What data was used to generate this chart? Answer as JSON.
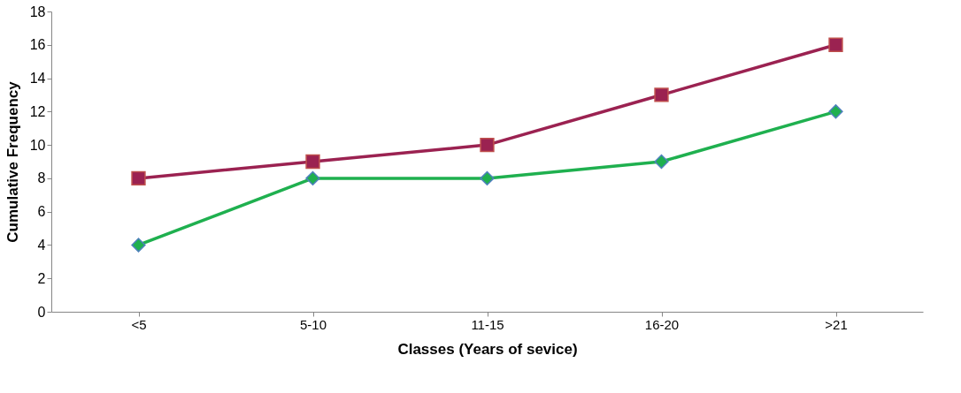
{
  "chart_data": {
    "type": "line",
    "xlabel": "Classes (Years of sevice)",
    "ylabel": "Cumulative Frequency",
    "categories": [
      "<5",
      "5-10",
      "11-15",
      "16-20",
      ">21"
    ],
    "series": [
      {
        "color": "#9b2251",
        "values": [
          8,
          9,
          10,
          13,
          16
        ],
        "marker": "square"
      },
      {
        "color": "#1fb04f",
        "values": [
          4,
          8,
          8,
          9,
          12
        ],
        "marker": "diamond"
      }
    ],
    "ylim": [
      0,
      18
    ],
    "yticks": [
      0,
      2,
      4,
      6,
      8,
      10,
      12,
      14,
      16,
      18
    ],
    "grid": false,
    "line_style": "solid"
  }
}
